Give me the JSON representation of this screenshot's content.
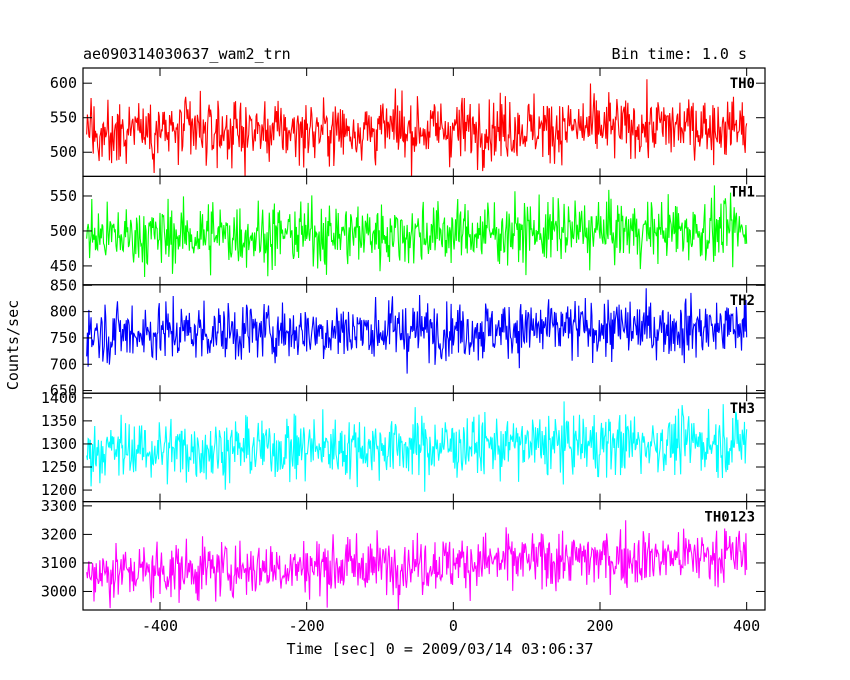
{
  "header": {
    "title": "ae090314030637_wam2_trn",
    "bin_time": "Bin time: 1.0 s"
  },
  "chart_data": {
    "type": "line",
    "title": "ae090314030637_wam2_trn",
    "subtitle": "Bin time: 1.0 s",
    "xlabel": "Time [sec] 0 = 2009/03/14 03:06:37",
    "ylabel": "Counts/sec",
    "xlim": [
      -505,
      425
    ],
    "x_range_of_data": [
      -500,
      400
    ],
    "x_ticks": [
      -400,
      -200,
      0,
      200,
      400
    ],
    "grid": false,
    "panels": [
      {
        "name": "TH0",
        "color": "#ff0000",
        "ylim": [
          465,
          622
        ],
        "y_ticks": [
          500,
          550,
          600
        ],
        "mean": 532,
        "noise_sd": 23,
        "trend_start": 528,
        "trend_end": 538
      },
      {
        "name": "TH1",
        "color": "#00ff00",
        "ylim": [
          423,
          578
        ],
        "y_ticks": [
          450,
          500,
          550
        ],
        "mean": 497,
        "noise_sd": 22,
        "trend_start": 492,
        "trend_end": 502
      },
      {
        "name": "TH2",
        "color": "#0000ff",
        "ylim": [
          645,
          851
        ],
        "y_ticks": [
          650,
          700,
          750,
          800,
          850
        ],
        "mean": 765,
        "noise_sd": 28,
        "trend_start": 760,
        "trend_end": 770
      },
      {
        "name": "TH3",
        "color": "#00ffff",
        "ylim": [
          1175,
          1410
        ],
        "y_ticks": [
          1200,
          1250,
          1300,
          1350,
          1400
        ],
        "mean": 1295,
        "noise_sd": 33,
        "trend_start": 1285,
        "trend_end": 1305
      },
      {
        "name": "TH0123",
        "color": "#ff00ff",
        "ylim": [
          2935,
          3315
        ],
        "y_ticks": [
          3000,
          3100,
          3200,
          3300
        ],
        "mean": 3090,
        "noise_sd": 50,
        "trend_start": 3065,
        "trend_end": 3130
      }
    ]
  }
}
